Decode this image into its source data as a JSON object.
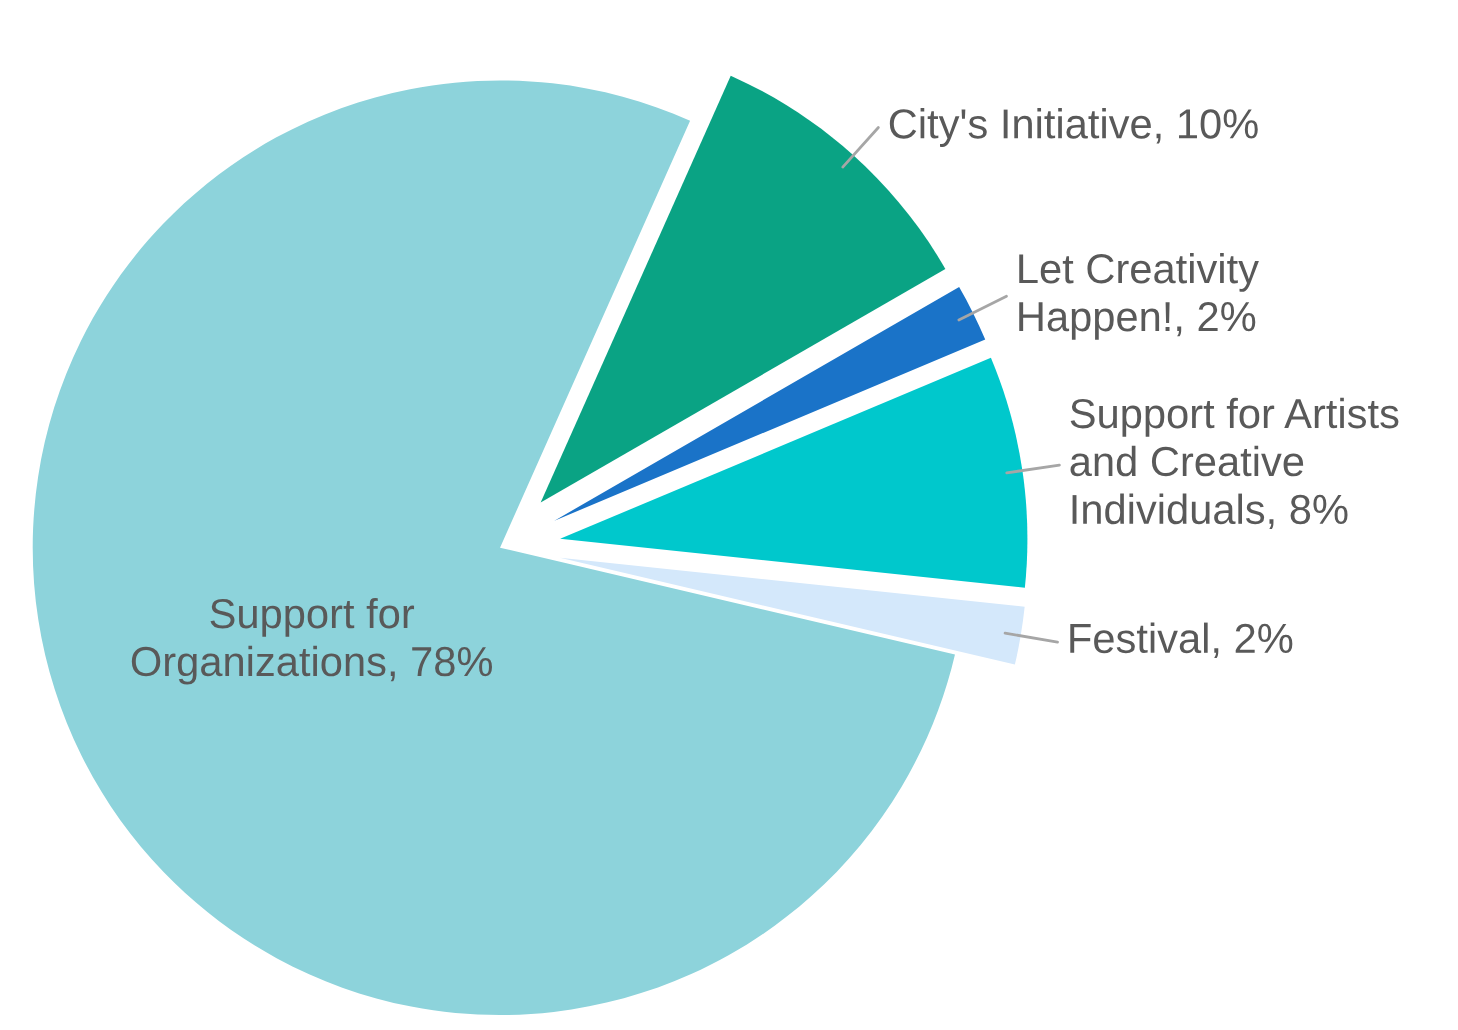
{
  "chart_data": {
    "type": "pie",
    "categories": [
      "City's Initiative",
      "Let Creativity Happen!",
      "Support for Artists and Creative Individuals",
      "Festival",
      "Support for Organizations"
    ],
    "values": [
      10,
      2,
      8,
      2,
      78
    ],
    "value_labels": [
      "10%",
      "2%",
      "8%",
      "2%",
      "78%"
    ],
    "colors": [
      "#0aa384",
      "#1a73c8",
      "#00c8cc",
      "#d4e8fb",
      "#8dd3db"
    ]
  }
}
